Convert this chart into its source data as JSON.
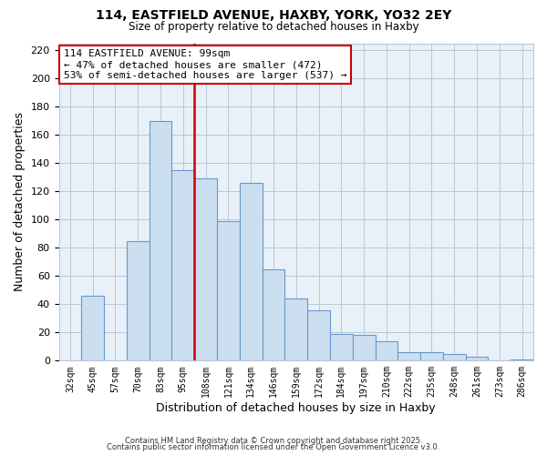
{
  "title": "114, EASTFIELD AVENUE, HAXBY, YORK, YO32 2EY",
  "subtitle": "Size of property relative to detached houses in Haxby",
  "xlabel": "Distribution of detached houses by size in Haxby",
  "ylabel": "Number of detached properties",
  "bar_labels": [
    "32sqm",
    "45sqm",
    "57sqm",
    "70sqm",
    "83sqm",
    "95sqm",
    "108sqm",
    "121sqm",
    "134sqm",
    "146sqm",
    "159sqm",
    "172sqm",
    "184sqm",
    "197sqm",
    "210sqm",
    "222sqm",
    "235sqm",
    "248sqm",
    "261sqm",
    "273sqm",
    "286sqm"
  ],
  "bar_values": [
    0,
    46,
    0,
    85,
    170,
    135,
    129,
    99,
    126,
    65,
    44,
    36,
    19,
    18,
    14,
    6,
    6,
    5,
    3,
    0,
    1
  ],
  "bar_color": "#ccdff0",
  "bar_edge_color": "#6699cc",
  "vline_x": 5.5,
  "vline_color": "#cc0000",
  "ylim": [
    0,
    225
  ],
  "yticks": [
    0,
    20,
    40,
    60,
    80,
    100,
    120,
    140,
    160,
    180,
    200,
    220
  ],
  "annotation_title": "114 EASTFIELD AVENUE: 99sqm",
  "annotation_line1": "← 47% of detached houses are smaller (472)",
  "annotation_line2": "53% of semi-detached houses are larger (537) →",
  "annotation_box_color": "#ffffff",
  "annotation_box_edge": "#cc0000",
  "footer_line1": "Contains HM Land Registry data © Crown copyright and database right 2025.",
  "footer_line2": "Contains public sector information licensed under the Open Government Licence v3.0.",
  "background_color": "#ffffff",
  "plot_bg_color": "#e8f0f8",
  "grid_color": "#b8c8d8"
}
